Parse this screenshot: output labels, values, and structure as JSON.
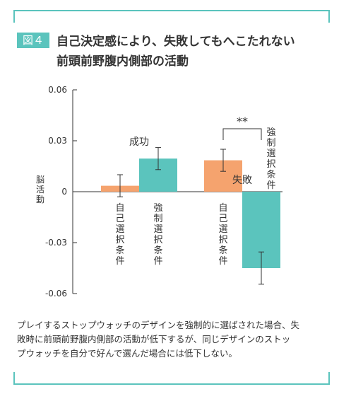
{
  "figure": {
    "label": "図４",
    "title_line1": "自己決定感により、失敗してもへこたれない",
    "title_line2": "前頭前野腹内側部の活動"
  },
  "chart_data": {
    "type": "bar",
    "ylabel": "脳活動",
    "ylim": [
      -0.06,
      0.06
    ],
    "yticks": [
      "0.06",
      "0.03",
      "0",
      "-0.03",
      "-0.06"
    ],
    "ytick_values": [
      0.06,
      0.03,
      0,
      -0.03,
      -0.06
    ],
    "groups": [
      {
        "name": "成功",
        "bars": [
          {
            "condition": "自己選択条件",
            "value": 0.0035,
            "error": 0.0065,
            "color": "#f5a36e"
          },
          {
            "condition": "強制選択条件",
            "value": 0.0195,
            "error": 0.0065,
            "color": "#5bc4bd"
          }
        ]
      },
      {
        "name": "失敗",
        "bars": [
          {
            "condition": "自己選択条件",
            "value": 0.0185,
            "error": 0.0065,
            "color": "#f5a36e"
          },
          {
            "condition": "強制選択条件",
            "value": -0.045,
            "error": 0.0095,
            "color": "#5bc4bd"
          }
        ]
      }
    ],
    "significance": "**"
  },
  "caption": [
    "プレイするストップウォッチのデザインを強制的に選ばされた場合、失",
    "敗時に前頭前野腹内側部の活動が低下するが、同じデザインのストッ",
    "プウォッチを自分で好んで選んだ場合には低下しない。"
  ]
}
